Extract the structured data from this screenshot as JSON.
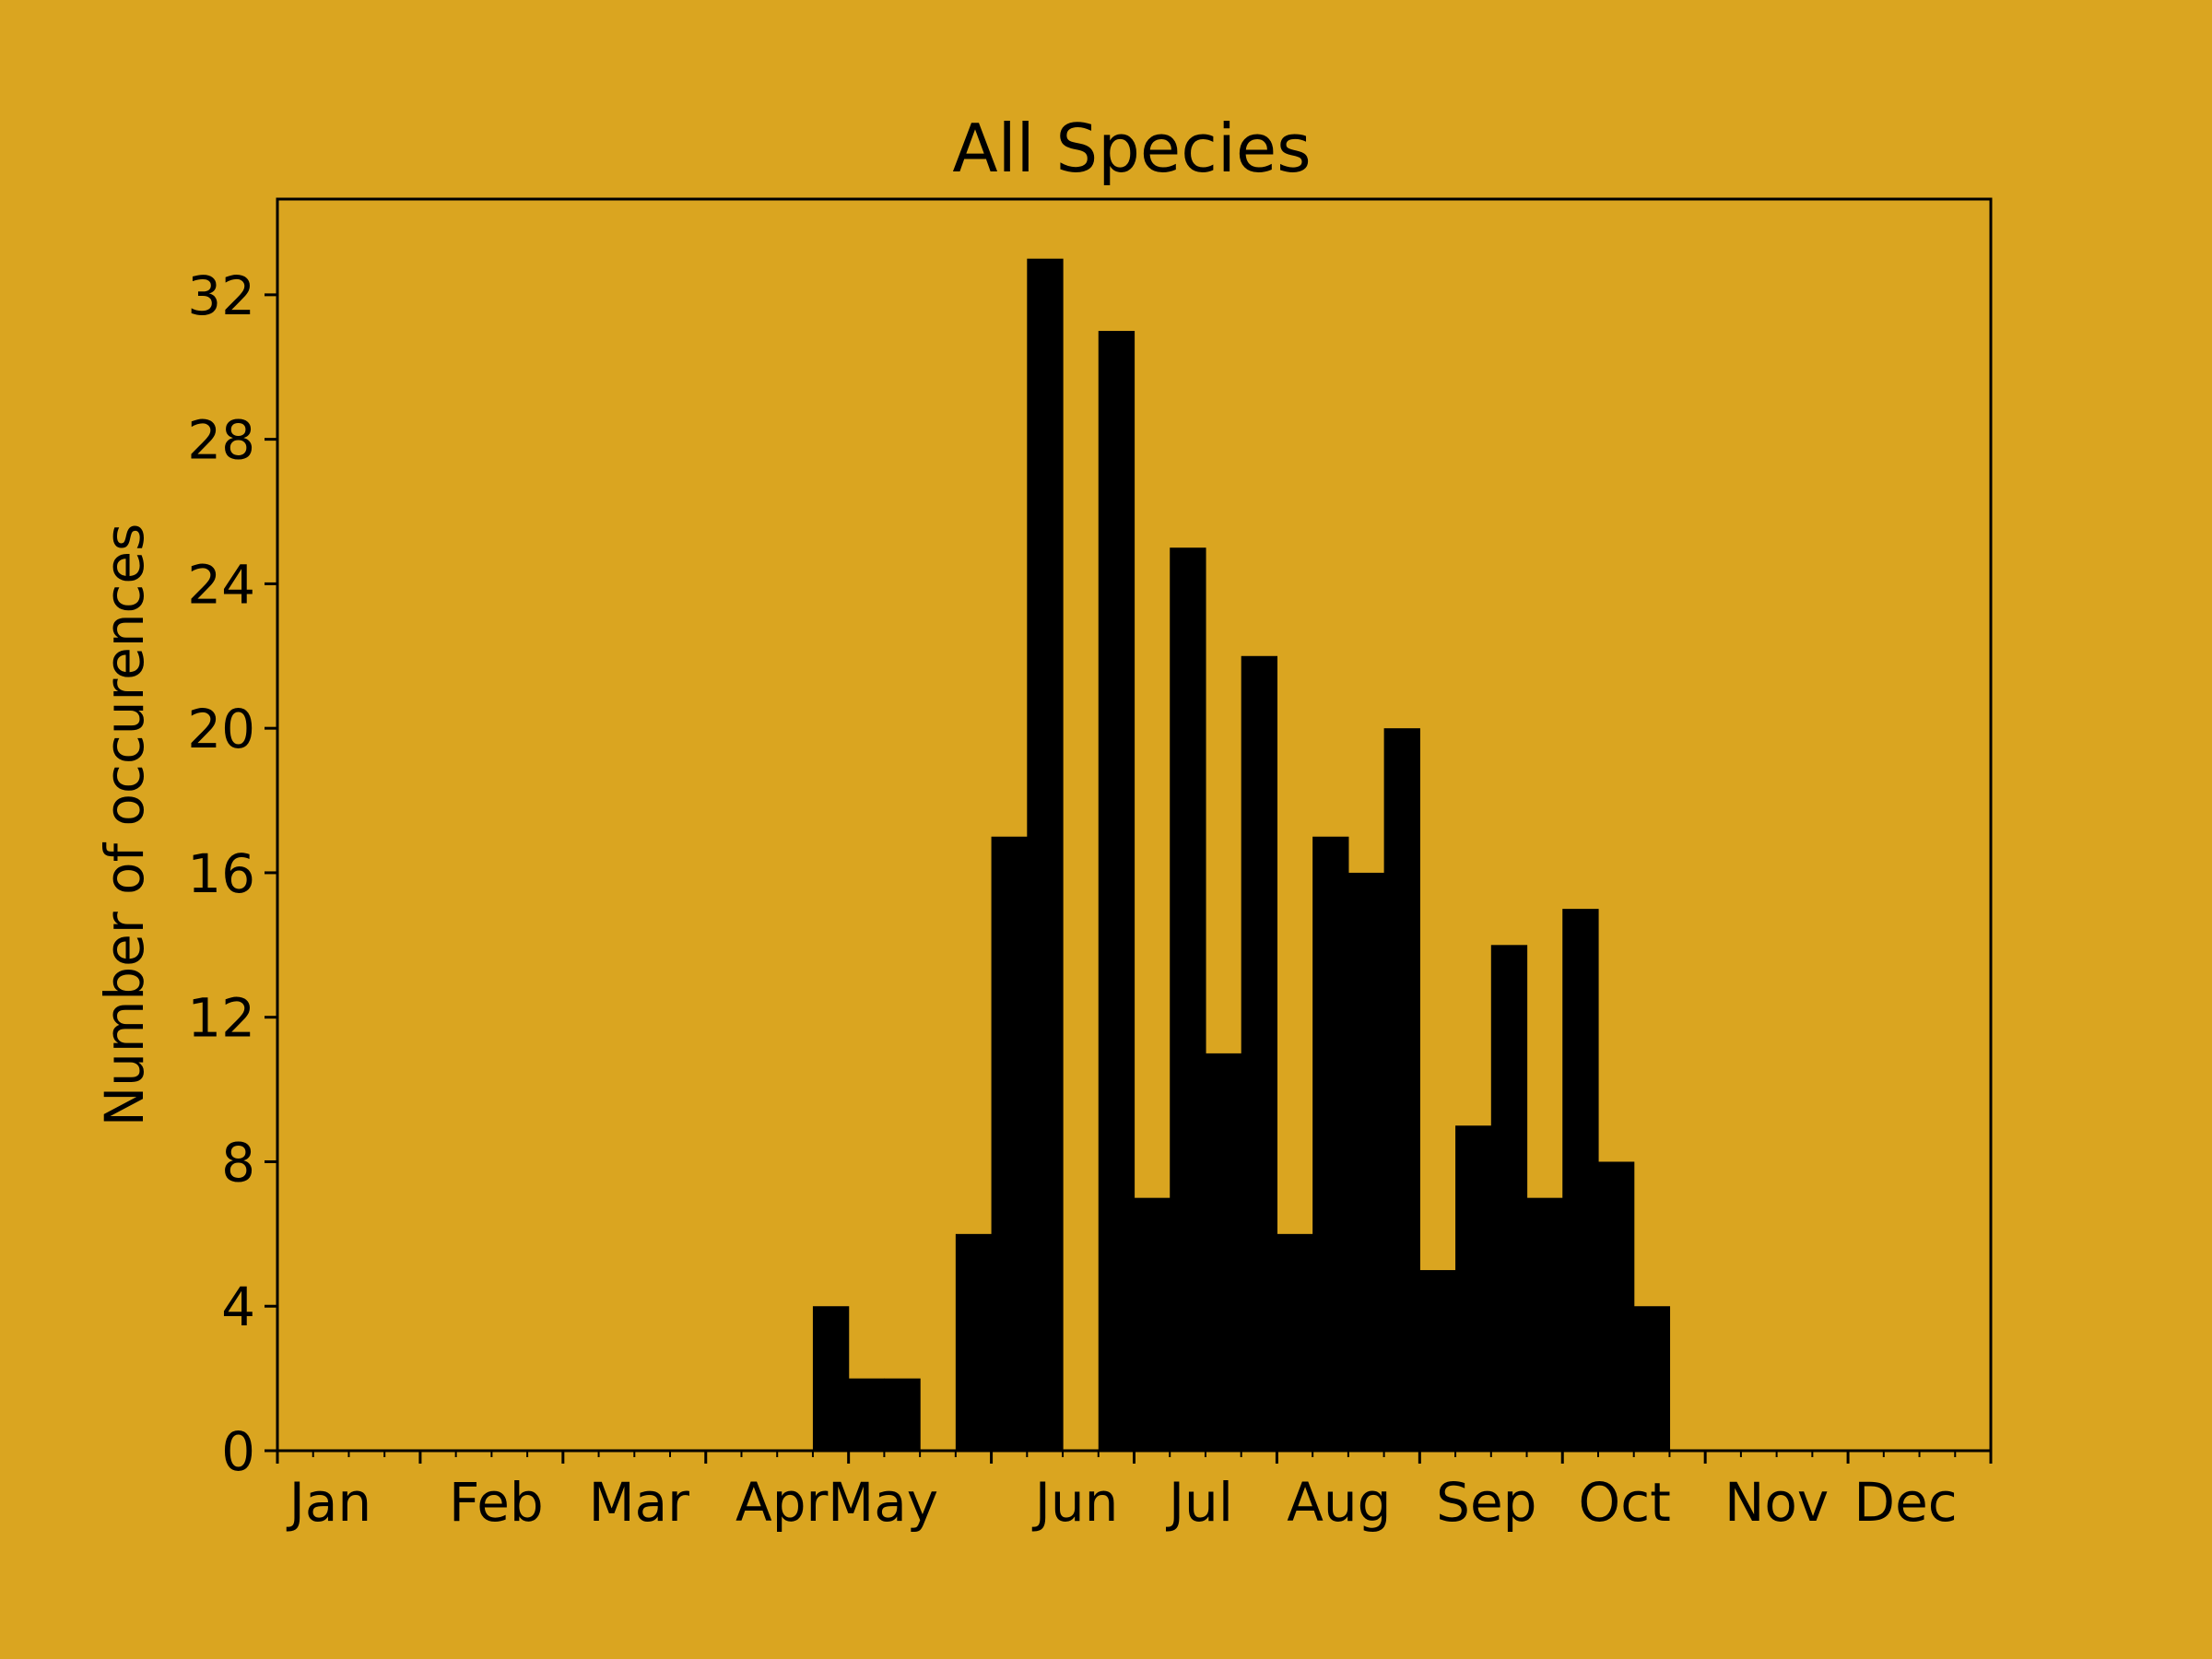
{
  "chart_data": {
    "type": "bar",
    "title": "All Species",
    "xlabel": "",
    "ylabel": "Number of occurences",
    "ylim": [
      0,
      34.65
    ],
    "yticks": [
      0,
      4,
      8,
      12,
      16,
      20,
      24,
      28,
      32
    ],
    "month_labels": [
      "Jan",
      "Feb",
      "Mar",
      "Apr",
      "May",
      "Jun",
      "Jul",
      "Aug",
      "Sep",
      "Oct",
      "Nov",
      "Dec"
    ],
    "bin_count": 48,
    "bins_per_month": 4,
    "values": [
      0,
      0,
      0,
      0,
      0,
      0,
      0,
      0,
      0,
      0,
      0,
      0,
      0,
      0,
      0,
      4,
      2,
      2,
      0,
      6,
      17,
      33,
      0,
      31,
      7,
      25,
      11,
      22,
      6,
      17,
      16,
      20,
      5,
      9,
      14,
      7,
      15,
      8,
      4,
      0,
      0,
      0,
      0,
      0,
      0,
      0,
      0,
      0
    ],
    "grid": false,
    "bar_color": "#000000",
    "background_color": "#DAA520"
  }
}
